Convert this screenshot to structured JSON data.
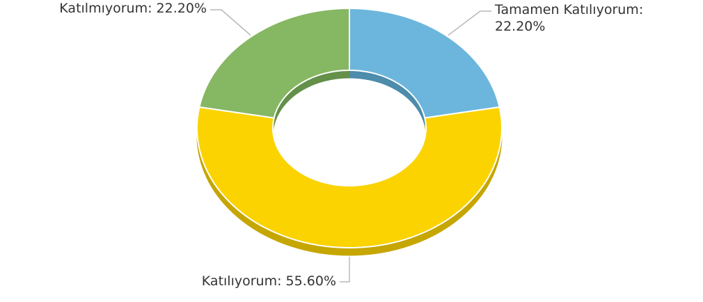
{
  "chart_data": {
    "type": "donut",
    "categories": [
      "Tamamen Katılıyorum",
      "Katılıyorum",
      "Katılmıyorum"
    ],
    "values": [
      22.2,
      55.6,
      22.2
    ],
    "value_labels": [
      "22.20%",
      "55.60%",
      "22.20%"
    ],
    "label_separator": ": ",
    "colors": [
      "#6cb6dd",
      "#fbd300",
      "#86b763"
    ],
    "side_colors": [
      "#4d8cab",
      "#c6a600",
      "#64904a"
    ]
  }
}
